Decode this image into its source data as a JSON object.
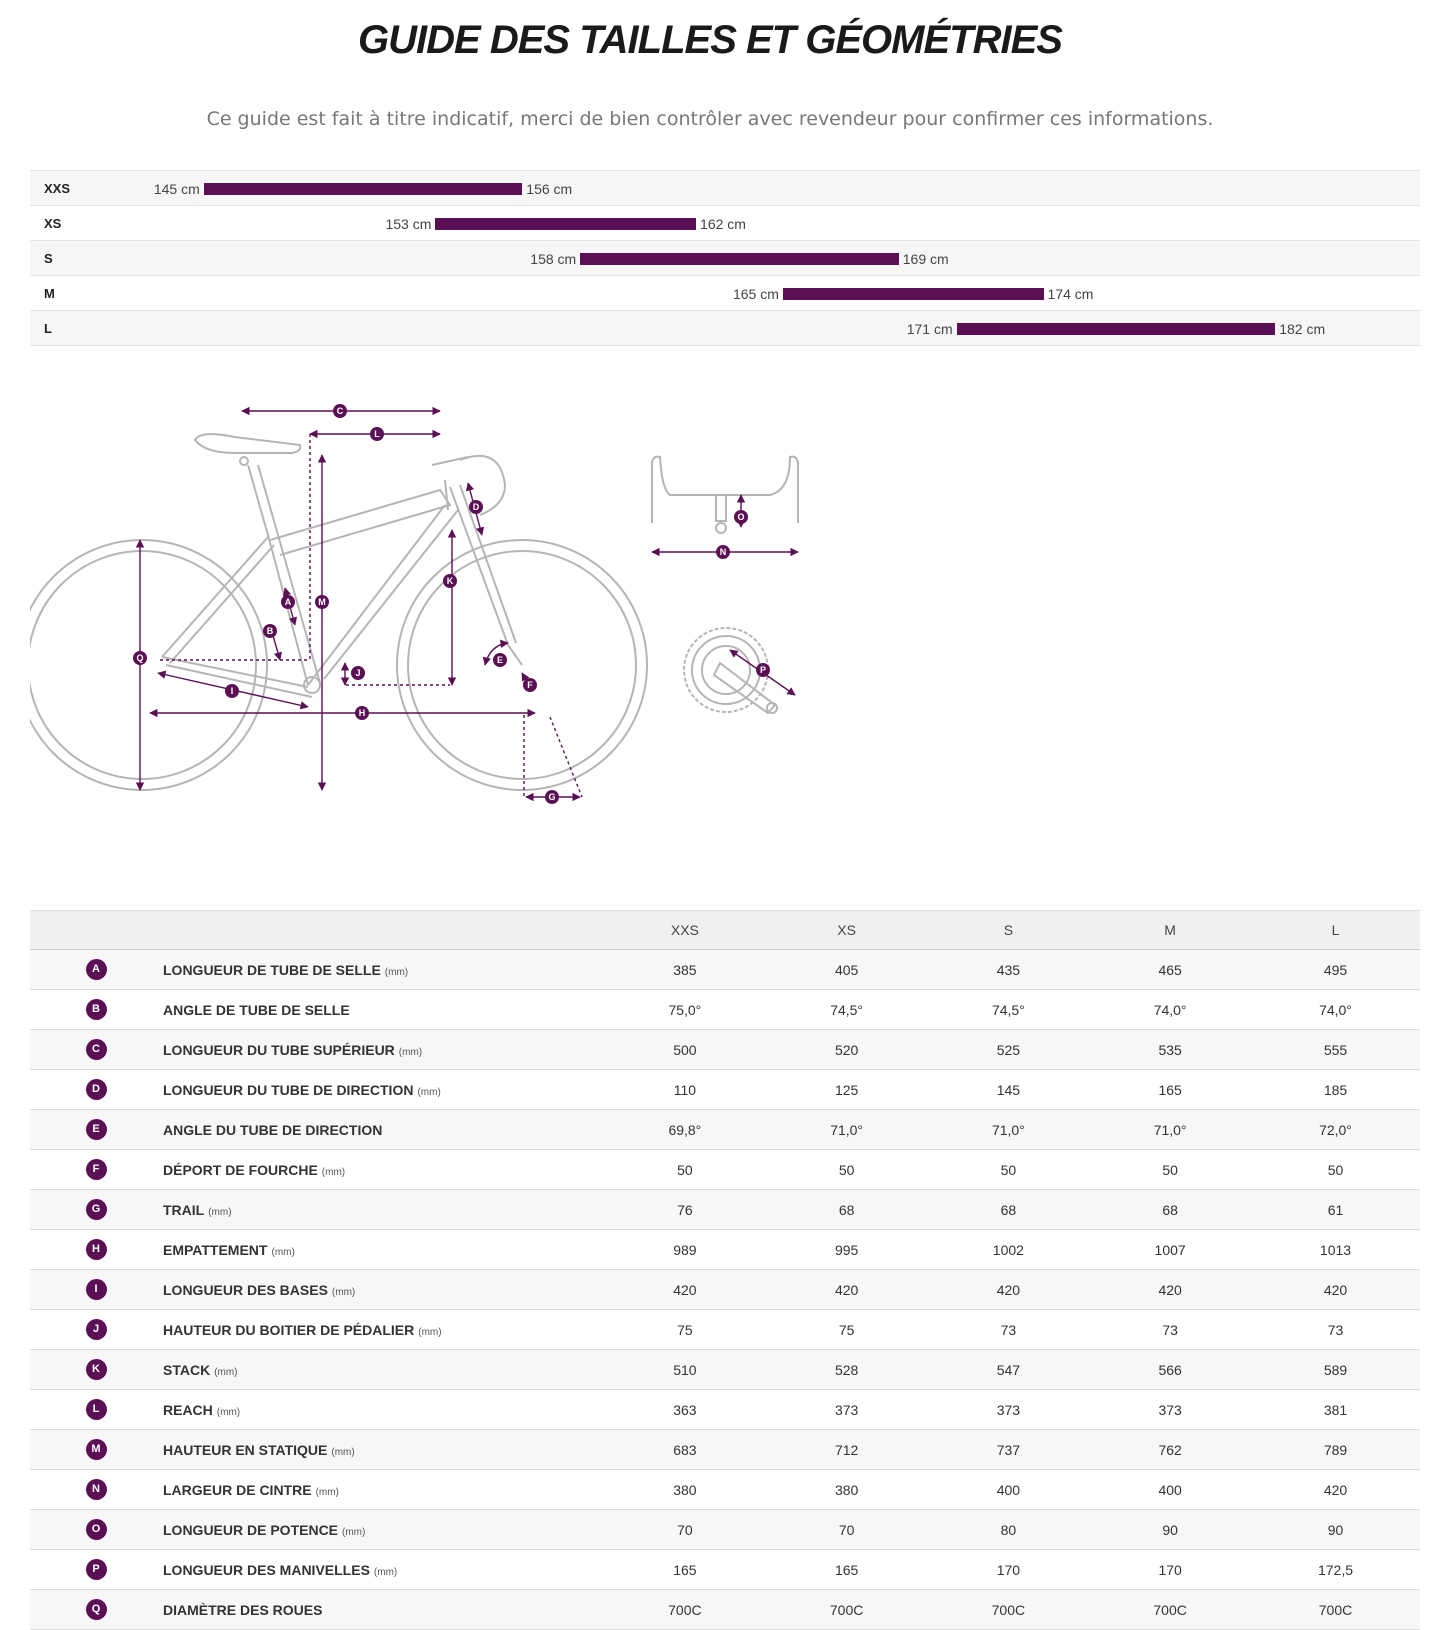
{
  "title": "GUIDE DES TAILLES ET GÉOMÉTRIES",
  "subtitle": "Ce guide est fait à titre indicatif, merci de bien contrôler avec revendeur pour confirmer ces informations.",
  "accent_color": "#5b0f55",
  "size_ranges": {
    "scale_cm": [
      139,
      187
    ],
    "rows": [
      {
        "size": "XXS",
        "min": 145,
        "max": 156,
        "min_label": "145 cm",
        "max_label": "156 cm"
      },
      {
        "size": "XS",
        "min": 153,
        "max": 162,
        "min_label": "153 cm",
        "max_label": "162 cm"
      },
      {
        "size": "S",
        "min": 158,
        "max": 169,
        "min_label": "158 cm",
        "max_label": "169 cm"
      },
      {
        "size": "M",
        "min": 165,
        "max": 174,
        "min_label": "165 cm",
        "max_label": "174 cm"
      },
      {
        "size": "L",
        "min": 171,
        "max": 182,
        "min_label": "171 cm",
        "max_label": "182 cm"
      }
    ]
  },
  "diagram": {
    "labels": [
      "A",
      "B",
      "C",
      "D",
      "E",
      "F",
      "G",
      "H",
      "I",
      "J",
      "K",
      "L",
      "M",
      "N",
      "O",
      "P",
      "Q"
    ],
    "icons": [
      "bike-frame-icon",
      "handlebar-icon",
      "crankset-icon"
    ]
  },
  "geometry": {
    "sizes": [
      "XXS",
      "XS",
      "S",
      "M",
      "L"
    ],
    "rows": [
      {
        "letter": "A",
        "name": "LONGUEUR DE TUBE DE SELLE",
        "unit": "(mm)",
        "values": [
          "385",
          "405",
          "435",
          "465",
          "495"
        ]
      },
      {
        "letter": "B",
        "name": "ANGLE DE TUBE DE SELLE",
        "unit": "",
        "values": [
          "75,0°",
          "74,5°",
          "74,5°",
          "74,0°",
          "74,0°"
        ]
      },
      {
        "letter": "C",
        "name": "LONGUEUR DU TUBE SUPÉRIEUR",
        "unit": "(mm)",
        "values": [
          "500",
          "520",
          "525",
          "535",
          "555"
        ]
      },
      {
        "letter": "D",
        "name": "LONGUEUR DU TUBE DE DIRECTION",
        "unit": "(mm)",
        "values": [
          "110",
          "125",
          "145",
          "165",
          "185"
        ]
      },
      {
        "letter": "E",
        "name": "ANGLE DU TUBE DE DIRECTION",
        "unit": "",
        "values": [
          "69,8°",
          "71,0°",
          "71,0°",
          "71,0°",
          "72,0°"
        ]
      },
      {
        "letter": "F",
        "name": "DÉPORT DE FOURCHE",
        "unit": "(mm)",
        "values": [
          "50",
          "50",
          "50",
          "50",
          "50"
        ]
      },
      {
        "letter": "G",
        "name": "TRAIL",
        "unit": "(mm)",
        "values": [
          "76",
          "68",
          "68",
          "68",
          "61"
        ]
      },
      {
        "letter": "H",
        "name": "EMPATTEMENT",
        "unit": "(mm)",
        "values": [
          "989",
          "995",
          "1002",
          "1007",
          "1013"
        ]
      },
      {
        "letter": "I",
        "name": "LONGUEUR DES BASES",
        "unit": "(mm)",
        "values": [
          "420",
          "420",
          "420",
          "420",
          "420"
        ]
      },
      {
        "letter": "J",
        "name": "HAUTEUR DU BOITIER DE PÉDALIER",
        "unit": "(mm)",
        "values": [
          "75",
          "75",
          "73",
          "73",
          "73"
        ]
      },
      {
        "letter": "K",
        "name": "STACK",
        "unit": "(mm)",
        "values": [
          "510",
          "528",
          "547",
          "566",
          "589"
        ]
      },
      {
        "letter": "L",
        "name": "REACH",
        "unit": "(mm)",
        "values": [
          "363",
          "373",
          "373",
          "373",
          "381"
        ]
      },
      {
        "letter": "M",
        "name": "HAUTEUR EN STATIQUE",
        "unit": "(mm)",
        "values": [
          "683",
          "712",
          "737",
          "762",
          "789"
        ]
      },
      {
        "letter": "N",
        "name": "LARGEUR DE CINTRE",
        "unit": "(mm)",
        "values": [
          "380",
          "380",
          "400",
          "400",
          "420"
        ]
      },
      {
        "letter": "O",
        "name": "LONGUEUR DE POTENCE",
        "unit": "(mm)",
        "values": [
          "70",
          "70",
          "80",
          "90",
          "90"
        ]
      },
      {
        "letter": "P",
        "name": "LONGUEUR DES MANIVELLES",
        "unit": "(mm)",
        "values": [
          "165",
          "165",
          "170",
          "170",
          "172,5"
        ]
      },
      {
        "letter": "Q",
        "name": "DIAMÈTRE DES ROUES",
        "unit": "",
        "values": [
          "700C",
          "700C",
          "700C",
          "700C",
          "700C"
        ]
      }
    ]
  }
}
